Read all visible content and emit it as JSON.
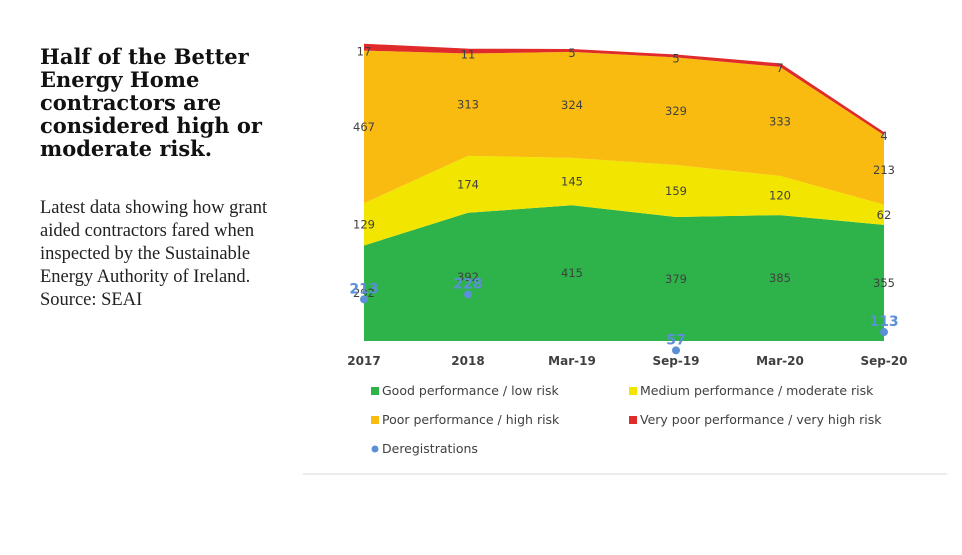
{
  "headline": "Half of the Better Energy Home contractors are considered high or moderate risk.",
  "description": "Latest data showing how grant aided contractors fared when inspected by the Sustainable Energy Authority of Ireland. Source: SEAI",
  "chart_data": {
    "type": "area",
    "stacked": true,
    "categories": [
      "2017",
      "2018",
      "Mar-19",
      "Sep-19",
      "Mar-20",
      "Sep-20"
    ],
    "series": [
      {
        "name": "Good performance / low risk",
        "color": "#2db34a",
        "values": [
          292,
          392,
          415,
          379,
          385,
          355
        ]
      },
      {
        "name": "Medium performance / moderate risk",
        "color": "#f2e600",
        "values": [
          129,
          174,
          145,
          159,
          120,
          62
        ]
      },
      {
        "name": "Poor performance / high risk",
        "color": "#f9bb10",
        "values": [
          467,
          313,
          324,
          329,
          333,
          213
        ]
      },
      {
        "name": "Very poor performance / very high risk",
        "color": "#e02b2b",
        "values": [
          17,
          11,
          5,
          5,
          7,
          4
        ]
      }
    ],
    "overlay": {
      "name": "Deregistrations",
      "type": "scatter",
      "color": "#5b8fd6",
      "values": [
        213,
        228,
        null,
        57,
        null,
        113
      ]
    },
    "ylim": [
      0,
      905
    ],
    "legend_position": "bottom",
    "grid": false
  }
}
